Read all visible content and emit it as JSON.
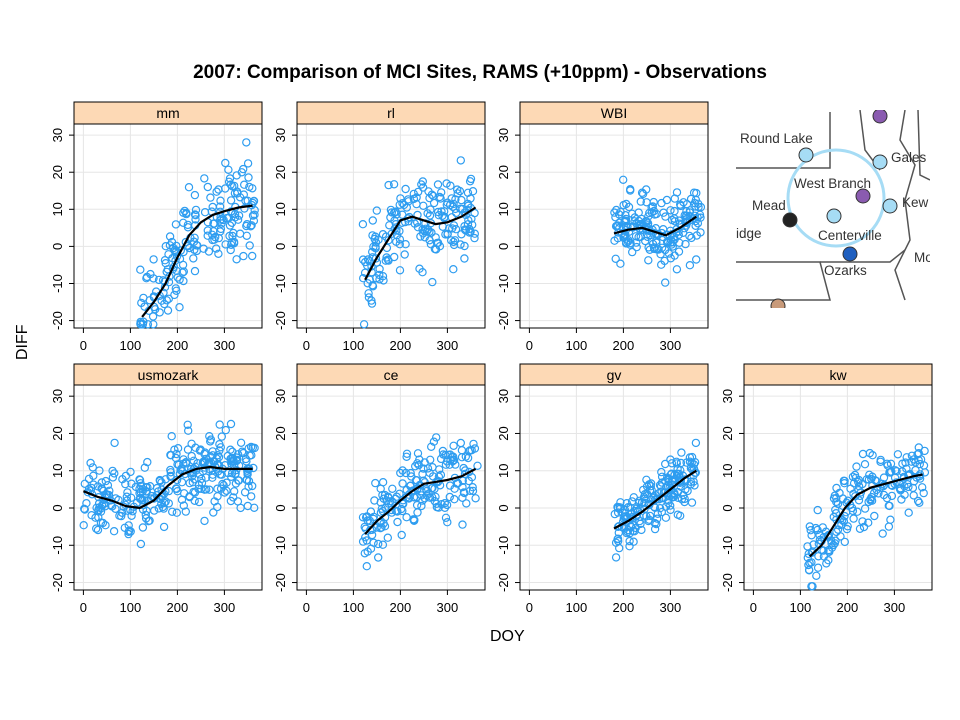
{
  "title": "2007: Comparison of MCI Sites, RAMS (+10ppm) - Observations",
  "xlabel": "DOY",
  "ylabel": "DIFF",
  "colors": {
    "points": "#2e9df0",
    "strip": "#fdd9b5",
    "smooth": "#000000",
    "grid": "#e6e6e6"
  },
  "map_inset": {
    "labels": [
      "Round Lake",
      "Galesville",
      "West Branch",
      "Mead",
      "Kewanee",
      "Centerville",
      "Ozarks",
      "Coldridge"
    ],
    "shown_text": [
      "Round Lake",
      "Gales",
      "West Branch",
      "Mead",
      "Kew",
      "Centerville",
      "Ozarks",
      "idge",
      "Mo"
    ]
  },
  "chart_data": [
    {
      "type": "scatter",
      "panel": "mm",
      "xlim": [
        -20,
        380
      ],
      "ylim": [
        -22,
        33
      ],
      "xticks": [
        0,
        100,
        200,
        300
      ],
      "yticks": [
        -20,
        -10,
        0,
        10,
        20,
        30
      ],
      "x_range": [
        120,
        365
      ],
      "y_mean_spread": 6,
      "smooth": [
        [
          125,
          -19
        ],
        [
          150,
          -15
        ],
        [
          175,
          -10
        ],
        [
          200,
          -3
        ],
        [
          225,
          3
        ],
        [
          250,
          6.5
        ],
        [
          275,
          8.5
        ],
        [
          300,
          9.5
        ],
        [
          330,
          10.5
        ],
        [
          360,
          11
        ]
      ]
    },
    {
      "type": "scatter",
      "panel": "rl",
      "xlim": [
        -20,
        380
      ],
      "ylim": [
        -22,
        33
      ],
      "xticks": [
        0,
        100,
        200,
        300
      ],
      "yticks": [
        -20,
        -10,
        0,
        10,
        20,
        30
      ],
      "x_range": [
        120,
        365
      ],
      "y_mean_spread": 5.5,
      "smooth": [
        [
          125,
          -9
        ],
        [
          150,
          -3
        ],
        [
          175,
          2
        ],
        [
          200,
          7
        ],
        [
          225,
          8
        ],
        [
          250,
          7
        ],
        [
          275,
          6
        ],
        [
          300,
          6.5
        ],
        [
          330,
          8
        ],
        [
          360,
          10.5
        ]
      ]
    },
    {
      "type": "scatter",
      "panel": "WBI",
      "xlim": [
        -20,
        380
      ],
      "ylim": [
        -22,
        33
      ],
      "xticks": [
        0,
        100,
        200,
        300
      ],
      "yticks": [
        -20,
        -10,
        0,
        10,
        20,
        30
      ],
      "x_range": [
        180,
        365
      ],
      "y_mean_spread": 4.5,
      "smooth": [
        [
          180,
          3.5
        ],
        [
          210,
          4.5
        ],
        [
          240,
          5
        ],
        [
          265,
          4
        ],
        [
          290,
          3
        ],
        [
          320,
          5
        ],
        [
          355,
          8
        ]
      ]
    },
    {
      "type": "scatter",
      "panel": "usmozark",
      "xlim": [
        -20,
        380
      ],
      "ylim": [
        -22,
        33
      ],
      "xticks": [
        0,
        100,
        200,
        300
      ],
      "yticks": [
        -20,
        -10,
        0,
        10,
        20,
        30
      ],
      "x_range": [
        0,
        365
      ],
      "y_mean_spread": 5,
      "smooth": [
        [
          0,
          4.5
        ],
        [
          30,
          3
        ],
        [
          60,
          2
        ],
        [
          90,
          0.5
        ],
        [
          120,
          0
        ],
        [
          150,
          2
        ],
        [
          180,
          6
        ],
        [
          210,
          9
        ],
        [
          240,
          10.5
        ],
        [
          270,
          11
        ],
        [
          300,
          10.5
        ],
        [
          330,
          10.5
        ],
        [
          360,
          10.5
        ]
      ]
    },
    {
      "type": "scatter",
      "panel": "ce",
      "xlim": [
        -20,
        380
      ],
      "ylim": [
        -22,
        33
      ],
      "xticks": [
        0,
        100,
        200,
        300
      ],
      "yticks": [
        -20,
        -10,
        0,
        10,
        20,
        30
      ],
      "x_range": [
        120,
        365
      ],
      "y_mean_spread": 5,
      "smooth": [
        [
          125,
          -7
        ],
        [
          150,
          -3.5
        ],
        [
          175,
          -1
        ],
        [
          200,
          2
        ],
        [
          225,
          4.5
        ],
        [
          250,
          6.5
        ],
        [
          275,
          7
        ],
        [
          300,
          7.5
        ],
        [
          330,
          8.5
        ],
        [
          360,
          10.5
        ]
      ]
    },
    {
      "type": "scatter",
      "panel": "gv",
      "xlim": [
        -20,
        380
      ],
      "ylim": [
        -22,
        33
      ],
      "xticks": [
        0,
        100,
        200,
        300
      ],
      "yticks": [
        -20,
        -10,
        0,
        10,
        20,
        30
      ],
      "x_range": [
        180,
        355
      ],
      "y_mean_spread": 3.5,
      "smooth": [
        [
          180,
          -5.5
        ],
        [
          210,
          -3.5
        ],
        [
          240,
          -1
        ],
        [
          270,
          2
        ],
        [
          300,
          5
        ],
        [
          330,
          8
        ],
        [
          355,
          10
        ]
      ]
    },
    {
      "type": "scatter",
      "panel": "kw",
      "xlim": [
        -20,
        380
      ],
      "ylim": [
        -22,
        33
      ],
      "xticks": [
        0,
        100,
        200,
        300
      ],
      "yticks": [
        -20,
        -10,
        0,
        10,
        20,
        30
      ],
      "x_range": [
        115,
        365
      ],
      "y_mean_spread": 4.5,
      "smooth": [
        [
          120,
          -13
        ],
        [
          145,
          -10
        ],
        [
          170,
          -5
        ],
        [
          195,
          0
        ],
        [
          220,
          3.5
        ],
        [
          250,
          5.5
        ],
        [
          280,
          6.5
        ],
        [
          310,
          7.5
        ],
        [
          340,
          8.5
        ],
        [
          360,
          9
        ]
      ]
    }
  ]
}
